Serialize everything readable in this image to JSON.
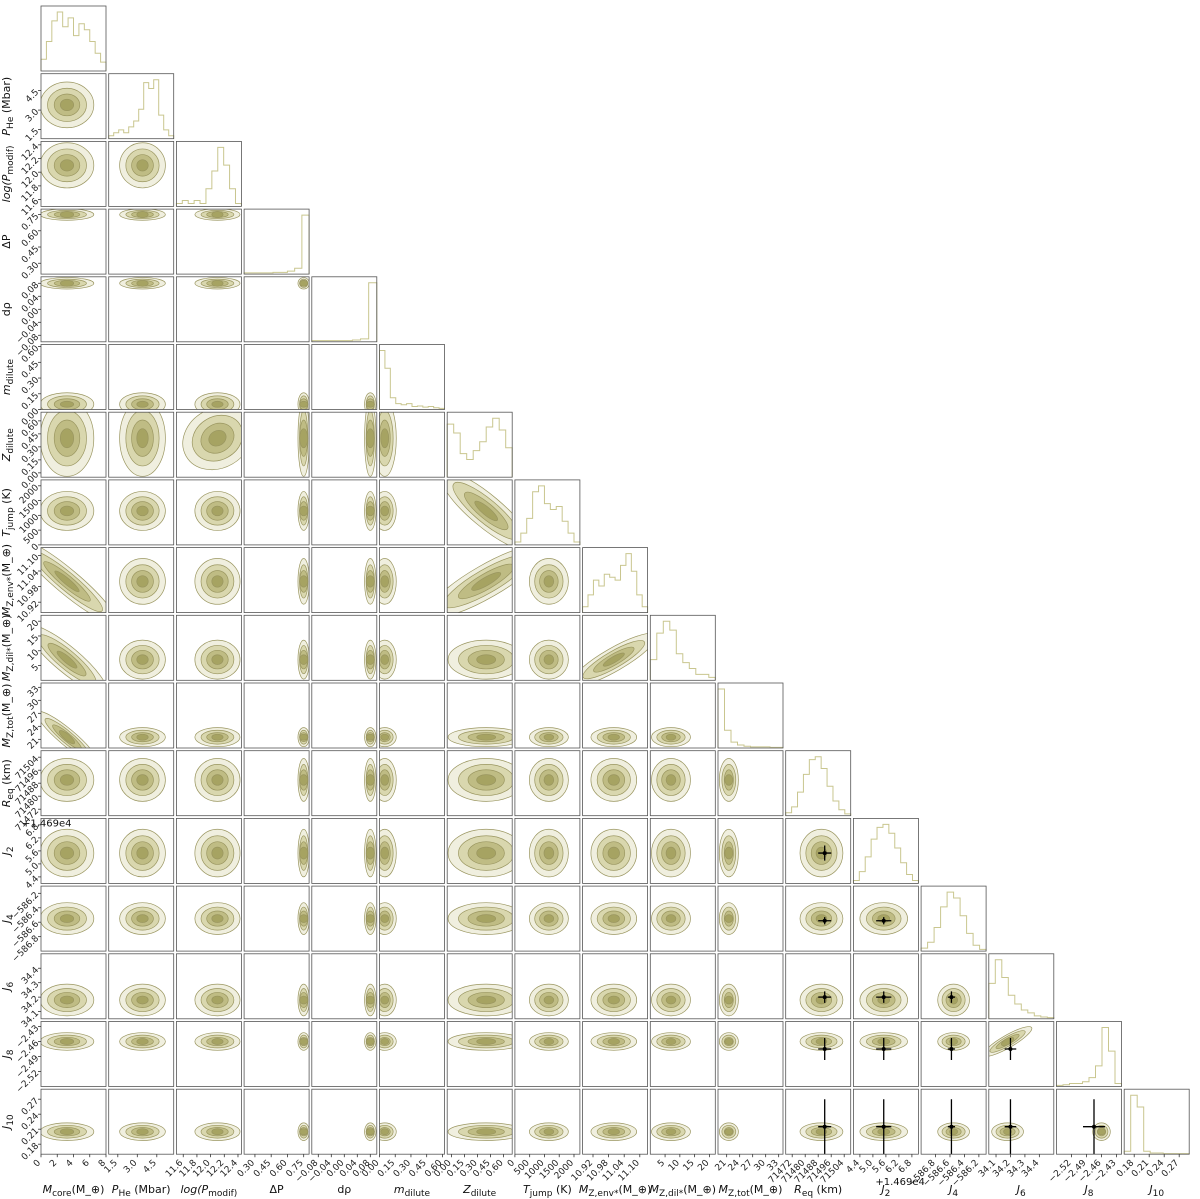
{
  "chart_data": {
    "type": "corner",
    "offset_labels": {
      "r_eq": "+1.469e4",
      "j2": "+1.469e4"
    },
    "parameters": [
      {
        "key": "mcore",
        "label": "M_core(M_⊕)",
        "range": [
          0,
          8
        ],
        "ticks": [
          "0",
          "2",
          "4",
          "6",
          "8"
        ]
      },
      {
        "key": "phe",
        "label": "P_He (Mbar)",
        "range": [
          0.8,
          5.8
        ],
        "ticks": [
          "1.5",
          "3.0",
          "4.5"
        ]
      },
      {
        "key": "logp",
        "label": "log(P_modif)",
        "range": [
          11.5,
          12.45
        ],
        "ticks": [
          "11.6",
          "11.8",
          "12.0",
          "12.2",
          "12.4"
        ]
      },
      {
        "key": "dP",
        "label": "ΔP",
        "range": [
          0.2,
          0.8
        ],
        "ticks": [
          "0.30",
          "0.45",
          "0.60",
          "0.75"
        ]
      },
      {
        "key": "drho",
        "label": "dρ",
        "range": [
          -0.1,
          0.1
        ],
        "ticks": [
          "−0.08",
          "−0.04",
          "0.00",
          "0.04",
          "0.08"
        ]
      },
      {
        "key": "mdil",
        "label": "m_dilute",
        "range": [
          0,
          0.62
        ],
        "ticks": [
          "0.00",
          "0.15",
          "0.30",
          "0.45",
          "0.60"
        ]
      },
      {
        "key": "zdil",
        "label": "Z_dilute",
        "range": [
          -0.05,
          0.7
        ],
        "ticks": [
          "0.00",
          "0.15",
          "0.30",
          "0.45",
          "0.60"
        ]
      },
      {
        "key": "tjump",
        "label": "T_jump (K)",
        "range": [
          0,
          2200
        ],
        "ticks": [
          "0",
          "500",
          "1000",
          "1500",
          "2000"
        ]
      },
      {
        "key": "mzenv",
        "label": "M_Z,env*(M_⊕)",
        "range": [
          10.88,
          11.13
        ],
        "ticks": [
          "10.92",
          "10.98",
          "11.04",
          "11.10"
        ]
      },
      {
        "key": "mzdil",
        "label": "M_Z,dil*(M_⊕)",
        "range": [
          0,
          22
        ],
        "ticks": [
          "5",
          "10",
          "15",
          "20"
        ]
      },
      {
        "key": "mztot",
        "label": "M_Z,tot(M_⊕)",
        "range": [
          19,
          34
        ],
        "ticks": [
          "21",
          "24",
          "27",
          "30",
          "33"
        ]
      },
      {
        "key": "req",
        "label": "R_eq (km)",
        "range": [
          71468,
          71508
        ],
        "ticks": [
          "71472",
          "71480",
          "71488",
          "71496",
          "71504"
        ]
      },
      {
        "key": "j2",
        "label": "J_2",
        "range": [
          4.1,
          7.1
        ],
        "ticks": [
          "4.4",
          "5.0",
          "5.6",
          "6.2",
          "6.8"
        ]
      },
      {
        "key": "j4",
        "label": "J_4",
        "range": [
          -587.0,
          -586.1
        ],
        "ticks": [
          "−586.8",
          "−586.6",
          "−586.4",
          "−586.2"
        ]
      },
      {
        "key": "j6",
        "label": "J_6",
        "range": [
          34.05,
          34.5
        ],
        "ticks": [
          "34.1",
          "34.2",
          "34.3",
          "34.4"
        ]
      },
      {
        "key": "j8",
        "label": "J_8",
        "range": [
          -2.55,
          -2.42
        ],
        "ticks": [
          "−2.52",
          "−2.49",
          "−2.46",
          "−2.43"
        ]
      },
      {
        "key": "j10",
        "label": "J_10",
        "range": [
          0.16,
          0.29
        ],
        "ticks": [
          "0.18",
          "0.21",
          "0.24",
          "0.27"
        ]
      }
    ],
    "means": [
      3.2,
      3.4,
      12.1,
      0.75,
      0.08,
      0.05,
      0.4,
      1150,
      11.0,
      7.0,
      21.5,
      71490,
      5.5,
      -586.55,
      34.18,
      -2.46,
      0.205
    ],
    "sigmas": [
      1.5,
      0.8,
      0.15,
      0.015,
      0.004,
      0.05,
      0.2,
      300,
      0.04,
      3.0,
      1.0,
      6.0,
      0.5,
      0.1,
      0.05,
      0.008,
      0.008
    ],
    "histograms": [
      [
        0.2,
        0.5,
        0.85,
        1.0,
        0.75,
        0.9,
        0.6,
        0.8,
        0.7,
        0.5,
        0.3,
        0.15
      ],
      [
        0.05,
        0.1,
        0.15,
        0.1,
        0.2,
        0.3,
        0.5,
        0.95,
        0.85,
        1.0,
        0.4,
        0.15,
        0.05
      ],
      [
        0.05,
        0.1,
        0.05,
        0.1,
        0.05,
        0.3,
        0.6,
        1.0,
        0.7,
        0.3,
        0.05
      ],
      [
        0.02,
        0.02,
        0.02,
        0.02,
        0.03,
        0.03,
        0.05,
        0.1,
        1.0
      ],
      [
        0.02,
        0.02,
        0.02,
        0.02,
        0.02,
        0.03,
        0.05,
        1.0
      ],
      [
        1.0,
        0.7,
        0.2,
        0.1,
        0.08,
        0.1,
        0.05,
        0.06,
        0.04,
        0.05,
        0.03,
        0.02
      ],
      [
        0.9,
        0.75,
        0.4,
        0.3,
        0.45,
        0.6,
        0.85,
        1.0,
        0.8,
        0.5
      ],
      [
        0.05,
        0.2,
        0.45,
        0.9,
        1.0,
        0.7,
        0.6,
        0.65,
        0.4,
        0.2,
        0.05
      ],
      [
        0.1,
        0.3,
        0.55,
        0.45,
        0.65,
        0.6,
        0.55,
        0.8,
        1.0,
        0.7,
        0.3,
        0.1
      ],
      [
        0.35,
        0.8,
        1.0,
        0.85,
        0.45,
        0.3,
        0.2,
        0.1,
        0.1,
        0.05
      ],
      [
        1.0,
        0.3,
        0.1,
        0.05,
        0.03,
        0.02,
        0.02,
        0.02,
        0.01,
        0.01
      ],
      [
        0.05,
        0.15,
        0.4,
        0.7,
        0.95,
        1.0,
        0.8,
        0.5,
        0.25,
        0.1,
        0.03
      ],
      [
        0.05,
        0.2,
        0.45,
        0.75,
        0.95,
        1.0,
        0.85,
        0.6,
        0.35,
        0.15,
        0.05
      ],
      [
        0.05,
        0.15,
        0.4,
        0.75,
        1.0,
        0.9,
        0.6,
        0.3,
        0.1,
        0.03
      ],
      [
        0.6,
        1.0,
        0.7,
        0.4,
        0.25,
        0.15,
        0.1,
        0.05,
        0.03,
        0.02
      ],
      [
        0.02,
        0.03,
        0.05,
        0.05,
        0.08,
        0.15,
        0.35,
        1.0,
        0.6,
        0.05
      ],
      [
        0.05,
        1.0,
        0.8,
        0.05,
        0.02,
        0.02,
        0.01,
        0.01,
        0.01,
        0.01
      ]
    ],
    "observations": [
      {
        "key": "req",
        "value": 71492,
        "err": 4.0
      },
      {
        "key": "j2",
        "value": 5.5,
        "err": 0.35
      },
      {
        "key": "j4",
        "value": -586.58,
        "err": 0.05
      },
      {
        "key": "j6",
        "value": 34.2,
        "err": 0.04
      },
      {
        "key": "j8",
        "value": -2.475,
        "err": 0.022
      },
      {
        "key": "j10",
        "value": 0.215,
        "err": 0.055
      }
    ],
    "colors": {
      "contour_fill": "#b8b57a",
      "contour_line": "#9a9660",
      "observation": "#000000",
      "frame": "#555555"
    }
  }
}
